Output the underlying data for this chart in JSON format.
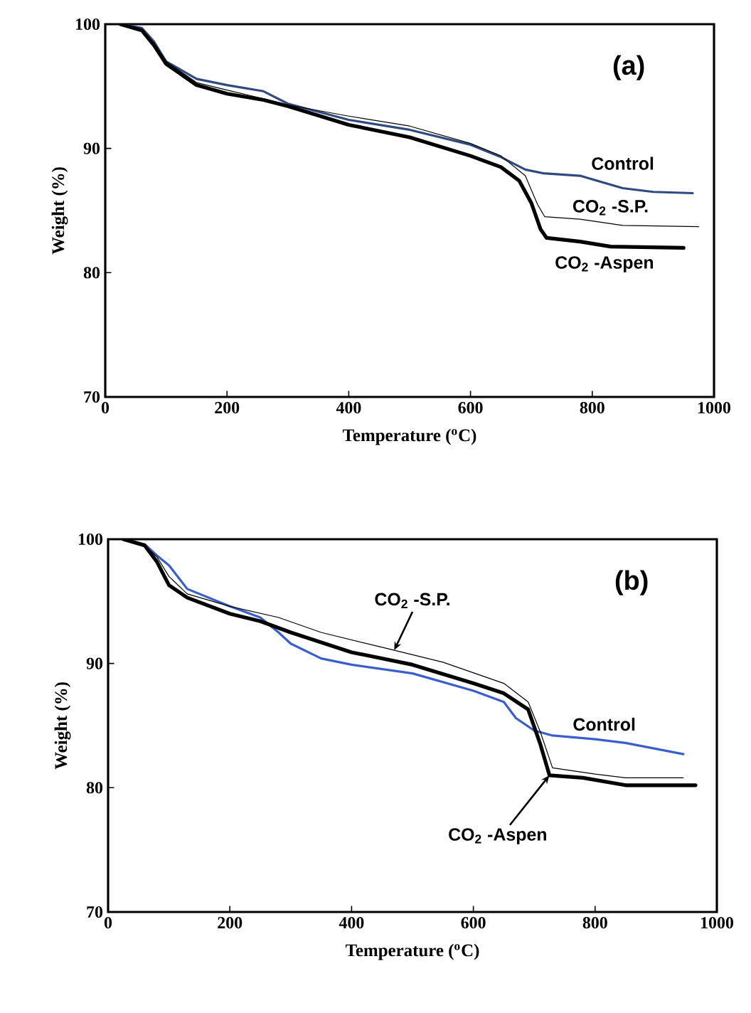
{
  "chart_data": [
    {
      "type": "line",
      "title": "(a)",
      "xlabel": "Temperature ($^{o}$C)",
      "ylabel": "Weight (%)",
      "xlim": [
        0,
        1000
      ],
      "ylim": [
        70,
        100
      ],
      "xticks": [
        0,
        200,
        400,
        600,
        800,
        1000
      ],
      "yticks": [
        70,
        80,
        90,
        100
      ],
      "grid": false,
      "legend": false,
      "marker": "none",
      "line_style": "solid",
      "series": [
        {
          "name": "Control",
          "color": "#2e4a80",
          "x": [
            25,
            60,
            80,
            100,
            150,
            200,
            260,
            300,
            400,
            500,
            600,
            650,
            690,
            720,
            780,
            850,
            900,
            965
          ],
          "values": [
            100,
            99.7,
            98.6,
            97,
            95.6,
            95.1,
            94.6,
            93.6,
            92.3,
            91.5,
            90.3,
            89.3,
            88.3,
            88.0,
            87.8,
            86.8,
            86.5,
            86.4
          ]
        },
        {
          "name": "CO$_{2}$ -S.P.",
          "color": "#000000",
          "x": [
            25,
            60,
            80,
            100,
            150,
            200,
            260,
            300,
            400,
            500,
            600,
            650,
            690,
            710,
            722,
            780,
            850,
            975
          ],
          "values": [
            100,
            99.5,
            98.5,
            97,
            95.3,
            94.7,
            94.0,
            93.5,
            92.6,
            91.8,
            90.4,
            89.4,
            87.8,
            85.5,
            84.5,
            84.3,
            83.8,
            83.7
          ]
        },
        {
          "name": "CO$_{2}$ -Aspen",
          "color": "#000000",
          "x": [
            25,
            60,
            80,
            100,
            150,
            200,
            260,
            300,
            400,
            500,
            600,
            650,
            680,
            700,
            715,
            725,
            780,
            830,
            950
          ],
          "values": [
            100,
            99.5,
            98.3,
            96.8,
            95.1,
            94.4,
            93.9,
            93.4,
            91.9,
            90.9,
            89.4,
            88.5,
            87.4,
            85.6,
            83.5,
            82.8,
            82.5,
            82.1,
            82.0
          ]
        }
      ]
    },
    {
      "type": "line",
      "title": "(b)",
      "xlabel": "Temperature ($^{o}$C)",
      "ylabel": "Weight (%)",
      "xlim": [
        0,
        1000
      ],
      "ylim": [
        70,
        100
      ],
      "xticks": [
        0,
        200,
        400,
        600,
        800,
        1000
      ],
      "yticks": [
        70,
        80,
        90,
        100
      ],
      "grid": false,
      "legend": false,
      "marker": "none",
      "line_style": "solid",
      "series": [
        {
          "name": "Control",
          "color": "#3a5fcd",
          "x": [
            25,
            60,
            80,
            100,
            130,
            200,
            250,
            280,
            300,
            350,
            400,
            500,
            600,
            650,
            670,
            700,
            730,
            800,
            850,
            945
          ],
          "values": [
            100,
            99.6,
            98.7,
            97.9,
            96,
            94.6,
            93.7,
            92.5,
            91.6,
            90.4,
            89.9,
            89.2,
            87.8,
            86.9,
            85.6,
            84.6,
            84.2,
            83.9,
            83.6,
            82.7
          ]
        },
        {
          "name": "CO$_{2}$ -S.P.",
          "color": "#000000",
          "x": [
            25,
            60,
            80,
            100,
            130,
            200,
            280,
            350,
            450,
            550,
            650,
            690,
            710,
            730,
            800,
            850,
            945
          ],
          "values": [
            100,
            99.5,
            98.6,
            97,
            95.6,
            94.6,
            93.7,
            92.5,
            91.3,
            90.1,
            88.4,
            86.9,
            84.5,
            81.6,
            81.1,
            80.8,
            80.8
          ]
        },
        {
          "name": "CO$_{2}$ -Aspen",
          "color": "#000000",
          "x": [
            25,
            60,
            80,
            100,
            130,
            200,
            250,
            300,
            400,
            500,
            600,
            650,
            690,
            710,
            725,
            780,
            850,
            965
          ],
          "values": [
            100,
            99.5,
            98.2,
            96.3,
            95.3,
            94.0,
            93.4,
            92.5,
            90.9,
            89.9,
            88.4,
            87.6,
            86.3,
            83.5,
            81.0,
            80.8,
            80.2,
            80.2
          ]
        }
      ]
    }
  ]
}
